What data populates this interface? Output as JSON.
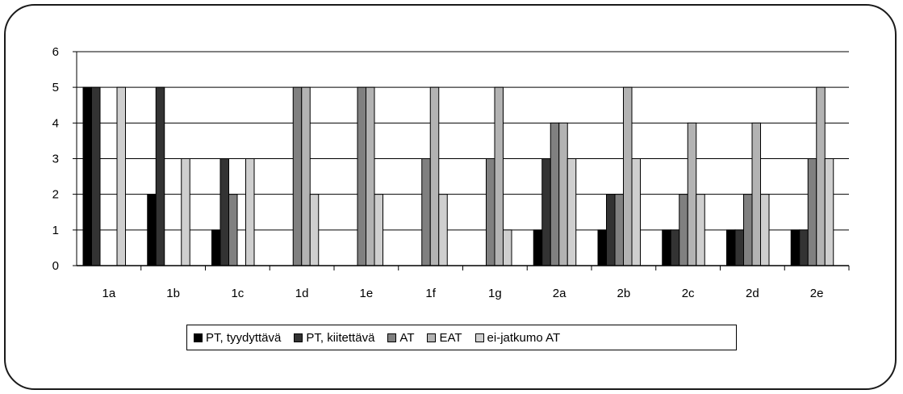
{
  "chart_data": {
    "type": "bar",
    "categories": [
      "1a",
      "1b",
      "1c",
      "1d",
      "1e",
      "1f",
      "1g",
      "2a",
      "2b",
      "2c",
      "2d",
      "2e"
    ],
    "series": [
      {
        "name": "PT, tyydyttävä",
        "color": "#000000",
        "values": [
          5,
          2,
          1,
          0,
          0,
          0,
          0,
          1,
          1,
          1,
          1,
          1
        ]
      },
      {
        "name": "PT, kiitettävä",
        "color": "#333333",
        "values": [
          5,
          5,
          3,
          0,
          0,
          0,
          0,
          3,
          2,
          1,
          1,
          1
        ]
      },
      {
        "name": "AT",
        "color": "#808080",
        "values": [
          0,
          0,
          2,
          5,
          5,
          3,
          3,
          4,
          2,
          2,
          2,
          3
        ]
      },
      {
        "name": "EAT",
        "color": "#b3b3b3",
        "values": [
          0,
          0,
          0,
          5,
          5,
          5,
          5,
          4,
          5,
          4,
          4,
          5
        ]
      },
      {
        "name": "ei-jatkumo AT",
        "color": "#cfcfcf",
        "values": [
          5,
          3,
          3,
          2,
          2,
          2,
          1,
          3,
          3,
          2,
          2,
          3
        ]
      }
    ],
    "yticks": [
      "0",
      "1",
      "2",
      "3",
      "4",
      "5",
      "6"
    ],
    "ylim": [
      0,
      6
    ],
    "grid": true,
    "legend_position": "bottom"
  }
}
